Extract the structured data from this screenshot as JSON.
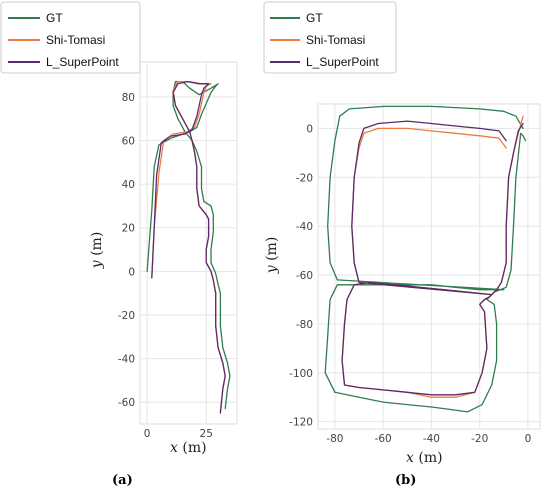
{
  "legend_labels": [
    "GT",
    "Shi-Tomasi",
    "L_SuperPoint"
  ],
  "colors": {
    "GT": "#2e7d4f",
    "Shi-Tomasi": "#f07b3f",
    "L_SuperPoint": "#5b2a6e"
  },
  "chart_data": [
    {
      "panel": "(a)",
      "type": "line",
      "xlabel_var": "x",
      "ylabel_var": "y",
      "unit": "(m)",
      "xlim": [
        -3,
        38
      ],
      "ylim": [
        -70,
        96
      ],
      "xticks": [
        0,
        25
      ],
      "yticks": [
        80,
        60,
        40,
        20,
        0,
        -20,
        -40,
        -60
      ],
      "series": [
        {
          "name": "GT",
          "points": [
            [
              0,
              0
            ],
            [
              2,
              28
            ],
            [
              3,
              48
            ],
            [
              5,
              58
            ],
            [
              10,
              61
            ],
            [
              18,
              64
            ],
            [
              21,
              66
            ],
            [
              23,
              72
            ],
            [
              27,
              82
            ],
            [
              29,
              85
            ],
            [
              30,
              86
            ],
            [
              27,
              84
            ],
            [
              22,
              81
            ],
            [
              18,
              84
            ],
            [
              15,
              87
            ],
            [
              12,
              87
            ],
            [
              11,
              82
            ],
            [
              11,
              76
            ],
            [
              13,
              70
            ],
            [
              16,
              64
            ],
            [
              19,
              60
            ],
            [
              21,
              55
            ],
            [
              23,
              48
            ],
            [
              23,
              38
            ],
            [
              24,
              32
            ],
            [
              27,
              30
            ],
            [
              28,
              26
            ],
            [
              28,
              18
            ],
            [
              27,
              10
            ],
            [
              27,
              4
            ],
            [
              29,
              -1
            ],
            [
              30,
              -6
            ],
            [
              31,
              -10
            ],
            [
              31,
              -25
            ],
            [
              32,
              -35
            ],
            [
              34,
              -42
            ],
            [
              35,
              -48
            ],
            [
              34,
              -54
            ],
            [
              33,
              -63
            ]
          ]
        },
        {
          "name": "Shi-Tomasi",
          "points": [
            [
              2,
              -3
            ],
            [
              3,
              20
            ],
            [
              5,
              45
            ],
            [
              7,
              60
            ],
            [
              11,
              63
            ],
            [
              17,
              64
            ],
            [
              20,
              66
            ],
            [
              22,
              72
            ],
            [
              24,
              82
            ],
            [
              25,
              85
            ],
            [
              27,
              86
            ],
            [
              23,
              86
            ],
            [
              18,
              87
            ],
            [
              13,
              87
            ],
            [
              11,
              83
            ],
            [
              12,
              76
            ],
            [
              15,
              70
            ],
            [
              18,
              64
            ],
            [
              19,
              60
            ],
            [
              20,
              55
            ],
            [
              21,
              48
            ],
            [
              21,
              38
            ],
            [
              22,
              30
            ],
            [
              25,
              26
            ],
            [
              26,
              24
            ],
            [
              26,
              16
            ],
            [
              25,
              10
            ],
            [
              25,
              4
            ],
            [
              27,
              0
            ],
            [
              28,
              -4
            ],
            [
              29,
              -10
            ],
            [
              29,
              -25
            ],
            [
              30,
              -35
            ],
            [
              32,
              -42
            ],
            [
              33,
              -48
            ],
            [
              32,
              -54
            ],
            [
              31,
              -64
            ]
          ]
        },
        {
          "name": "L_SuperPoint",
          "points": [
            [
              2,
              -3
            ],
            [
              3,
              20
            ],
            [
              4,
              44
            ],
            [
              6,
              59
            ],
            [
              10,
              62
            ],
            [
              16,
              63
            ],
            [
              19,
              65
            ],
            [
              21,
              71
            ],
            [
              23,
              81
            ],
            [
              24,
              84
            ],
            [
              26,
              86
            ],
            [
              22,
              86
            ],
            [
              17,
              87
            ],
            [
              13,
              86
            ],
            [
              11,
              82
            ],
            [
              12,
              76
            ],
            [
              15,
              70
            ],
            [
              18,
              64
            ],
            [
              19,
              60
            ],
            [
              20,
              55
            ],
            [
              21,
              48
            ],
            [
              21,
              38
            ],
            [
              22,
              30
            ],
            [
              25,
              26
            ],
            [
              26,
              24
            ],
            [
              26,
              16
            ],
            [
              25,
              10
            ],
            [
              25,
              4
            ],
            [
              27,
              0
            ],
            [
              28,
              -4
            ],
            [
              29,
              -10
            ],
            [
              29,
              -25
            ],
            [
              30,
              -35
            ],
            [
              32,
              -42
            ],
            [
              33,
              -48
            ],
            [
              32,
              -54
            ],
            [
              31,
              -65
            ]
          ]
        }
      ]
    },
    {
      "panel": "(b)",
      "type": "line",
      "xlabel_var": "x",
      "ylabel_var": "y",
      "unit": "(m)",
      "xlim": [
        -87,
        5
      ],
      "ylim": [
        -123,
        10
      ],
      "xticks": [
        -80,
        -60,
        -40,
        -20,
        0
      ],
      "yticks": [
        0,
        -20,
        -40,
        -60,
        -80,
        -100,
        -120
      ],
      "series": [
        {
          "name": "GT",
          "points": [
            [
              -1,
              -5
            ],
            [
              -2,
              -3
            ],
            [
              -3,
              -2
            ],
            [
              -5,
              -20
            ],
            [
              -6,
              -40
            ],
            [
              -7,
              -58
            ],
            [
              -9,
              -65
            ],
            [
              -14,
              -67
            ],
            [
              -17,
              -70
            ],
            [
              -14,
              -72
            ],
            [
              -13,
              -80
            ],
            [
              -13,
              -95
            ],
            [
              -15,
              -105
            ],
            [
              -19,
              -113
            ],
            [
              -25,
              -116
            ],
            [
              -32,
              -115
            ],
            [
              -40,
              -114
            ],
            [
              -50,
              -113
            ],
            [
              -60,
              -112
            ],
            [
              -70,
              -110
            ],
            [
              -80,
              -108
            ],
            [
              -84,
              -100
            ],
            [
              -83,
              -85
            ],
            [
              -82,
              -70
            ],
            [
              -79,
              -64
            ],
            [
              -70,
              -64
            ],
            [
              -60,
              -64
            ],
            [
              -50,
              -64
            ],
            [
              -40,
              -64
            ],
            [
              -30,
              -65
            ],
            [
              -20,
              -66
            ],
            [
              -10,
              -66
            ],
            [
              -79,
              -62
            ],
            [
              -82,
              -55
            ],
            [
              -83,
              -40
            ],
            [
              -82,
              -20
            ],
            [
              -80,
              -5
            ],
            [
              -78,
              5
            ],
            [
              -74,
              8
            ],
            [
              -60,
              9
            ],
            [
              -40,
              9
            ],
            [
              -20,
              8
            ],
            [
              -10,
              7
            ],
            [
              -5,
              5
            ],
            [
              -2,
              0
            ]
          ]
        },
        {
          "name": "Shi-Tomasi",
          "points": [
            [
              -2,
              5
            ],
            [
              -4,
              -2
            ],
            [
              -6,
              -10
            ],
            [
              -8,
              -20
            ],
            [
              -9,
              -40
            ],
            [
              -9,
              -55
            ],
            [
              -11,
              -63
            ],
            [
              -13,
              -66
            ],
            [
              -16,
              -69
            ],
            [
              -18,
              -70
            ],
            [
              -20,
              -72
            ],
            [
              -18,
              -75
            ],
            [
              -17,
              -90
            ],
            [
              -19,
              -100
            ],
            [
              -22,
              -108
            ],
            [
              -30,
              -110
            ],
            [
              -40,
              -110
            ],
            [
              -50,
              -108
            ],
            [
              -60,
              -107
            ],
            [
              -70,
              -106
            ],
            [
              -76,
              -105
            ],
            [
              -77,
              -95
            ],
            [
              -76,
              -80
            ],
            [
              -75,
              -70
            ],
            [
              -72,
              -64
            ],
            [
              -65,
              -63
            ],
            [
              -55,
              -64
            ],
            [
              -45,
              -65
            ],
            [
              -35,
              -66
            ],
            [
              -25,
              -67
            ],
            [
              -15,
              -68
            ],
            [
              -70,
              -63
            ],
            [
              -72,
              -55
            ],
            [
              -73,
              -40
            ],
            [
              -72,
              -20
            ],
            [
              -70,
              -8
            ],
            [
              -68,
              -2
            ],
            [
              -62,
              0
            ],
            [
              -50,
              0
            ],
            [
              -40,
              -1
            ],
            [
              -30,
              -2
            ],
            [
              -20,
              -3
            ],
            [
              -12,
              -4
            ],
            [
              -9,
              -8
            ]
          ]
        },
        {
          "name": "L_SuperPoint",
          "points": [
            [
              -2,
              2
            ],
            [
              -4,
              -1
            ],
            [
              -6,
              -10
            ],
            [
              -8,
              -20
            ],
            [
              -9,
              -40
            ],
            [
              -9,
              -55
            ],
            [
              -11,
              -63
            ],
            [
              -13,
              -66
            ],
            [
              -16,
              -69
            ],
            [
              -18,
              -70
            ],
            [
              -20,
              -72
            ],
            [
              -18,
              -75
            ],
            [
              -17,
              -90
            ],
            [
              -19,
              -100
            ],
            [
              -22,
              -108
            ],
            [
              -30,
              -109
            ],
            [
              -40,
              -109
            ],
            [
              -50,
              -108
            ],
            [
              -60,
              -107
            ],
            [
              -70,
              -106
            ],
            [
              -76,
              -105
            ],
            [
              -77,
              -95
            ],
            [
              -76,
              -80
            ],
            [
              -75,
              -70
            ],
            [
              -72,
              -64
            ],
            [
              -65,
              -63
            ],
            [
              -55,
              -64
            ],
            [
              -45,
              -65
            ],
            [
              -35,
              -66
            ],
            [
              -25,
              -67
            ],
            [
              -15,
              -68
            ],
            [
              -70,
              -63
            ],
            [
              -72,
              -55
            ],
            [
              -73,
              -40
            ],
            [
              -72,
              -20
            ],
            [
              -70,
              -6
            ],
            [
              -68,
              0
            ],
            [
              -62,
              2
            ],
            [
              -50,
              3
            ],
            [
              -40,
              2
            ],
            [
              -30,
              1
            ],
            [
              -20,
              0
            ],
            [
              -12,
              -1
            ],
            [
              -9,
              -5
            ]
          ]
        }
      ]
    }
  ]
}
